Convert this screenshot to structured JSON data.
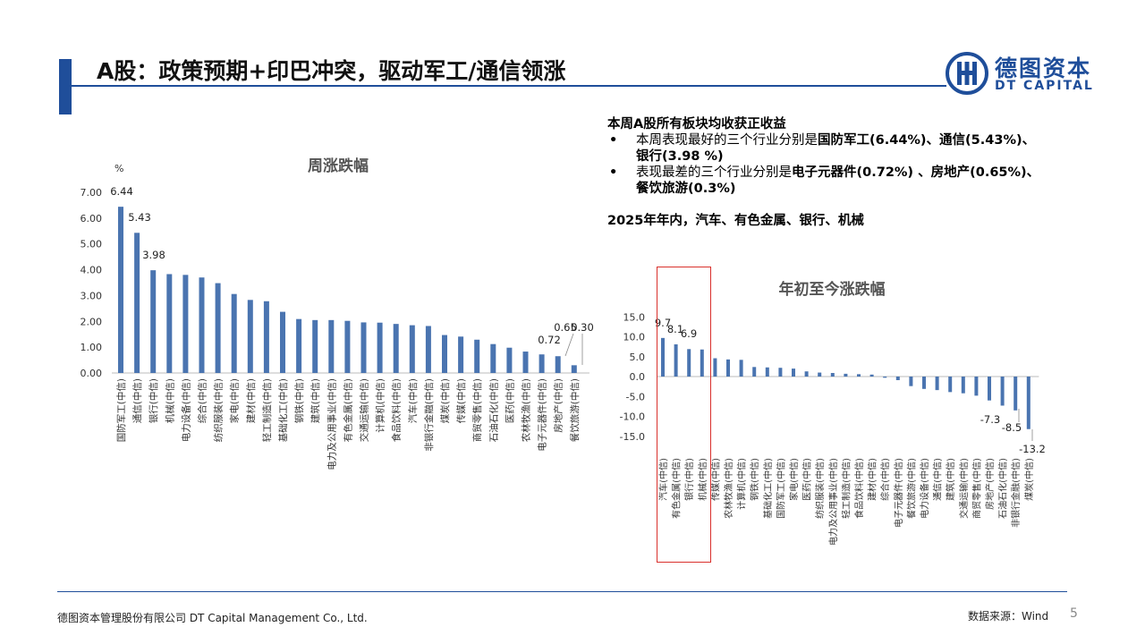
{
  "slide": {
    "title": "A股：政策预期+印巴冲突，驱动军工/通信领涨",
    "page_number": "5"
  },
  "logo": {
    "name_cn": "德图资本",
    "name_en": "DT CAPITAL",
    "brand_color": "#1f4e9a"
  },
  "summary": {
    "heading": "本周A股所有板块均收获正收益",
    "bullet1_prefix": "本周表现最好的三个行业分别是",
    "bullet1_body": "国防军工(6.44%)、通信(5.43%)、银行(3.98 %)",
    "bullet2_prefix": "表现最差的三个行业分别是",
    "bullet2_body": "电子元器件(0.72%) 、房地产(0.65%)、餐饮旅游(0.3%)",
    "ytd_line": "2025年年内，汽车、有色金属、银行、机械"
  },
  "footer": {
    "company": "德图资本管理股份有限公司 DT Capital Management Co., Ltd.",
    "source": "数据来源：Wind"
  },
  "chart_data": [
    {
      "type": "bar",
      "title": "周涨跌幅",
      "ylabel": "%",
      "ylim": [
        0,
        7
      ],
      "yticks": [
        "0.00",
        "1.00",
        "2.00",
        "3.00",
        "4.00",
        "5.00",
        "6.00",
        "7.00"
      ],
      "bar_color": "#4a74b0",
      "categories": [
        "国防军工(中信)",
        "通信(中信)",
        "银行(中信)",
        "机械(中信)",
        "电力设备(中信)",
        "综合(中信)",
        "纺织服装(中信)",
        "家电(中信)",
        "建材(中信)",
        "轻工制造(中信)",
        "基础化工(中信)",
        "钢铁(中信)",
        "建筑(中信)",
        "电力及公用事业(中信)",
        "有色金属(中信)",
        "交通运输(中信)",
        "计算机(中信)",
        "食品饮料(中信)",
        "汽车(中信)",
        "非银行金融(中信)",
        "煤炭(中信)",
        "传媒(中信)",
        "商贸零售(中信)",
        "石油石化(中信)",
        "医药(中信)",
        "农林牧渔(中信)",
        "电子元器件(中信)",
        "房地产(中信)",
        "餐饮旅游(中信)"
      ],
      "values": [
        6.44,
        5.43,
        3.98,
        3.83,
        3.8,
        3.7,
        3.48,
        3.06,
        2.83,
        2.78,
        2.37,
        2.09,
        2.05,
        2.05,
        2.02,
        1.96,
        1.95,
        1.9,
        1.85,
        1.82,
        1.47,
        1.41,
        1.29,
        1.12,
        0.98,
        0.83,
        0.72,
        0.65,
        0.3
      ],
      "data_labels": {
        "0": "6.44",
        "1": "5.43",
        "2": "3.98",
        "26": "0.72",
        "27": "0.65",
        "28": "0.30"
      }
    },
    {
      "type": "bar",
      "title": "年初至今涨跌幅",
      "ylim": [
        -15,
        15
      ],
      "yticks": [
        "-15.0",
        "-10.0",
        "-5.0",
        "0.0",
        "5.0",
        "10.0",
        "15.0"
      ],
      "bar_color": "#4a74b0",
      "highlight_color": "#d9302c",
      "categories": [
        "汽车(中信)",
        "有色金属(中信)",
        "银行(中信)",
        "机械(中信)",
        "传媒(中信)",
        "农林牧渔(中信)",
        "计算机(中信)",
        "钢铁(中信)",
        "基础化工(中信)",
        "国防军工(中信)",
        "家电(中信)",
        "医药(中信)",
        "纺织服装(中信)",
        "电力及公用事业(中信)",
        "轻工制造(中信)",
        "食品饮料(中信)",
        "建材(中信)",
        "综合(中信)",
        "电子元器件(中信)",
        "餐饮旅游(中信)",
        "电力设备(中信)",
        "通信(中信)",
        "建筑(中信)",
        "交通运输(中信)",
        "商贸零售(中信)",
        "房地产(中信)",
        "石油石化(中信)",
        "非银行金融(中信)",
        "煤炭(中信)"
      ],
      "values": [
        9.7,
        8.1,
        6.9,
        6.8,
        4.6,
        4.3,
        4.2,
        2.4,
        2.3,
        2.2,
        2.0,
        1.3,
        1.0,
        0.9,
        0.7,
        0.6,
        0.5,
        -0.3,
        -0.9,
        -2.4,
        -3.1,
        -3.4,
        -3.9,
        -4.2,
        -4.8,
        -6.0,
        -7.3,
        -8.5,
        -13.2
      ],
      "data_labels": {
        "0": "9.7",
        "1": "8.1",
        "2": "6.9",
        "26": "-7.3",
        "27": "-8.5",
        "28": "-13.2"
      }
    }
  ]
}
